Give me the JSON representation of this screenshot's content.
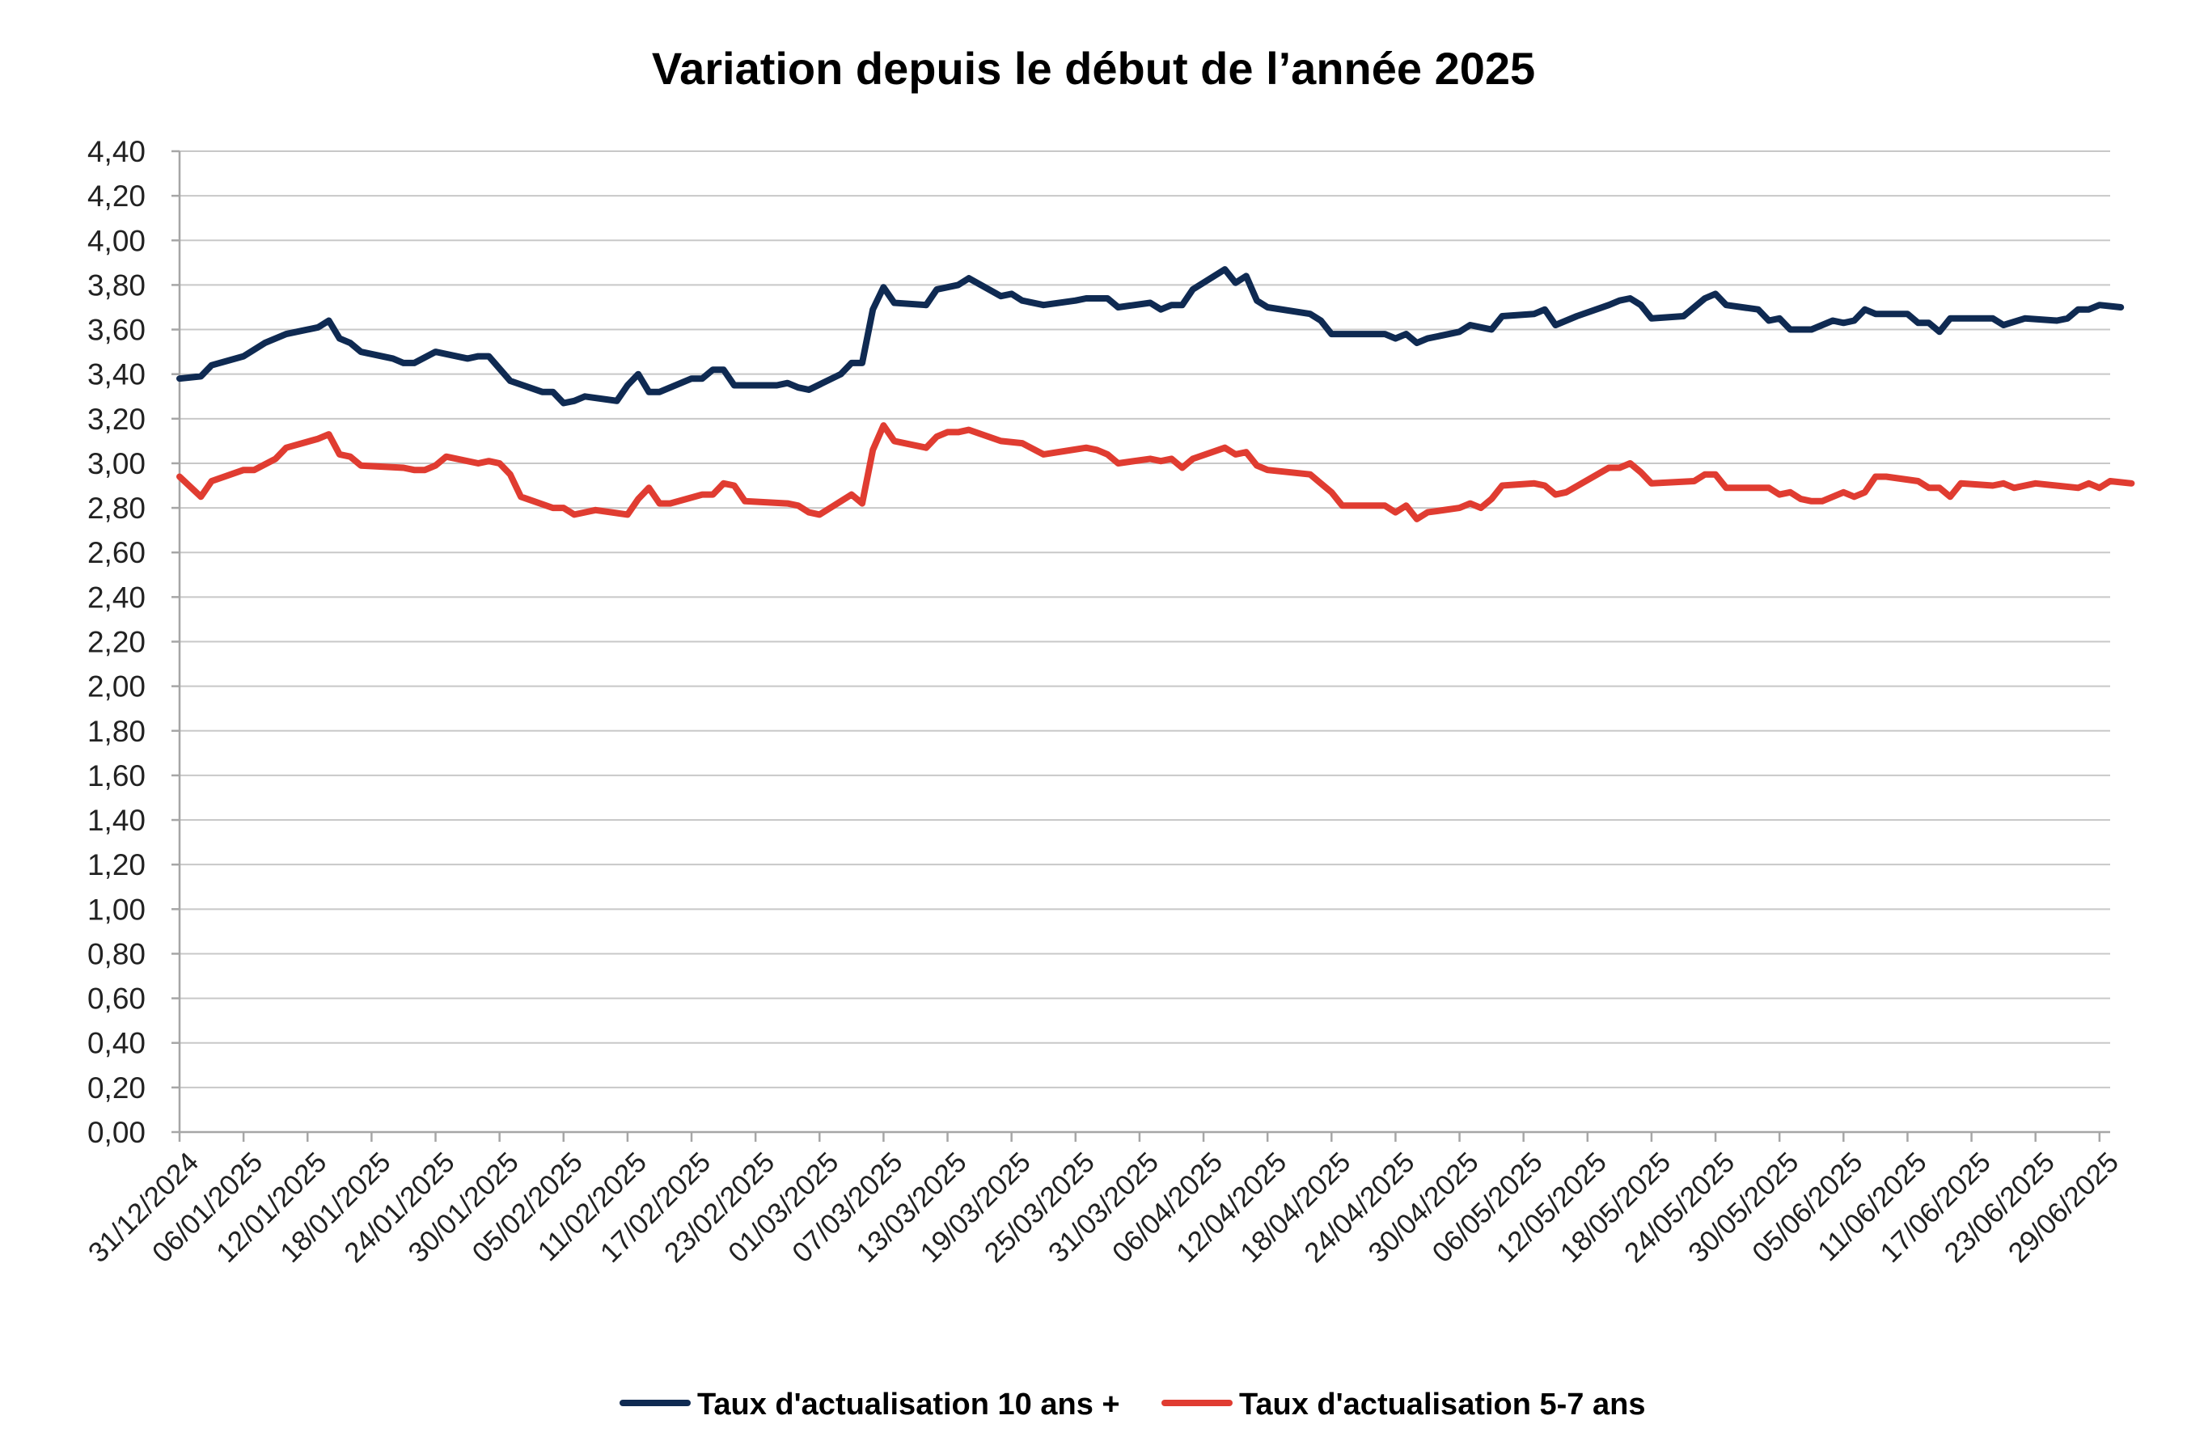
{
  "chart_data": {
    "type": "line",
    "title": "Variation depuis le début de l’année 2025",
    "xlabel": "",
    "ylabel": "",
    "ylim": [
      0,
      4.4
    ],
    "y_tick_step": 0.2,
    "y_tick_labels": [
      "0,00",
      "0,20",
      "0,40",
      "0,60",
      "0,80",
      "1,00",
      "1,20",
      "1,40",
      "1,60",
      "1,80",
      "2,00",
      "2,20",
      "2,40",
      "2,60",
      "2,80",
      "3,00",
      "3,20",
      "3,40",
      "3,60",
      "3,80",
      "4,00",
      "4,20",
      "4,40"
    ],
    "x_range": [
      "2024-12-31",
      "2025-06-30"
    ],
    "x_tick_labels": [
      "31/12/2024",
      "06/01/2025",
      "12/01/2025",
      "18/01/2025",
      "24/01/2025",
      "30/01/2025",
      "05/02/2025",
      "11/02/2025",
      "17/02/2025",
      "23/02/2025",
      "01/03/2025",
      "07/03/2025",
      "13/03/2025",
      "19/03/2025",
      "25/03/2025",
      "31/03/2025",
      "06/04/2025",
      "12/04/2025",
      "18/04/2025",
      "24/04/2025",
      "30/04/2025",
      "06/05/2025",
      "12/05/2025",
      "18/05/2025",
      "24/05/2025",
      "30/05/2025",
      "05/06/2025",
      "11/06/2025",
      "17/06/2025",
      "23/06/2025",
      "29/06/2025"
    ],
    "grid": true,
    "legend_position": "bottom",
    "series": [
      {
        "name": "Taux d'actualisation 10 ans +",
        "color": "#0f2a52",
        "points": [
          [
            "2024-12-31",
            3.38
          ],
          [
            "2025-01-02",
            3.39
          ],
          [
            "2025-01-03",
            3.44
          ],
          [
            "2025-01-06",
            3.48
          ],
          [
            "2025-01-07",
            3.51
          ],
          [
            "2025-01-08",
            3.54
          ],
          [
            "2025-01-10",
            3.58
          ],
          [
            "2025-01-13",
            3.61
          ],
          [
            "2025-01-14",
            3.64
          ],
          [
            "2025-01-15",
            3.56
          ],
          [
            "2025-01-16",
            3.54
          ],
          [
            "2025-01-17",
            3.5
          ],
          [
            "2025-01-20",
            3.47
          ],
          [
            "2025-01-21",
            3.45
          ],
          [
            "2025-01-22",
            3.45
          ],
          [
            "2025-01-24",
            3.5
          ],
          [
            "2025-01-27",
            3.47
          ],
          [
            "2025-01-28",
            3.48
          ],
          [
            "2025-01-29",
            3.48
          ],
          [
            "2025-01-31",
            3.37
          ],
          [
            "2025-02-03",
            3.32
          ],
          [
            "2025-02-04",
            3.32
          ],
          [
            "2025-02-05",
            3.27
          ],
          [
            "2025-02-06",
            3.28
          ],
          [
            "2025-02-07",
            3.3
          ],
          [
            "2025-02-10",
            3.28
          ],
          [
            "2025-02-11",
            3.35
          ],
          [
            "2025-02-12",
            3.4
          ],
          [
            "2025-02-13",
            3.32
          ],
          [
            "2025-02-14",
            3.32
          ],
          [
            "2025-02-17",
            3.38
          ],
          [
            "2025-02-18",
            3.38
          ],
          [
            "2025-02-19",
            3.42
          ],
          [
            "2025-02-20",
            3.42
          ],
          [
            "2025-02-21",
            3.35
          ],
          [
            "2025-02-24",
            3.35
          ],
          [
            "2025-02-25",
            3.35
          ],
          [
            "2025-02-26",
            3.36
          ],
          [
            "2025-02-27",
            3.34
          ],
          [
            "2025-02-28",
            3.33
          ],
          [
            "2025-03-03",
            3.4
          ],
          [
            "2025-03-04",
            3.45
          ],
          [
            "2025-03-05",
            3.45
          ],
          [
            "2025-03-06",
            3.69
          ],
          [
            "2025-03-07",
            3.79
          ],
          [
            "2025-03-08",
            3.72
          ],
          [
            "2025-03-11",
            3.71
          ],
          [
            "2025-03-12",
            3.78
          ],
          [
            "2025-03-14",
            3.8
          ],
          [
            "2025-03-15",
            3.83
          ],
          [
            "2025-03-18",
            3.75
          ],
          [
            "2025-03-19",
            3.76
          ],
          [
            "2025-03-20",
            3.73
          ],
          [
            "2025-03-22",
            3.71
          ],
          [
            "2025-03-25",
            3.73
          ],
          [
            "2025-03-26",
            3.74
          ],
          [
            "2025-03-28",
            3.74
          ],
          [
            "2025-03-29",
            3.7
          ],
          [
            "2025-04-01",
            3.72
          ],
          [
            "2025-04-02",
            3.69
          ],
          [
            "2025-04-03",
            3.71
          ],
          [
            "2025-04-04",
            3.71
          ],
          [
            "2025-04-05",
            3.78
          ],
          [
            "2025-04-08",
            3.87
          ],
          [
            "2025-04-09",
            3.81
          ],
          [
            "2025-04-10",
            3.84
          ],
          [
            "2025-04-11",
            3.73
          ],
          [
            "2025-04-12",
            3.7
          ],
          [
            "2025-04-16",
            3.67
          ],
          [
            "2025-04-17",
            3.64
          ],
          [
            "2025-04-18",
            3.58
          ],
          [
            "2025-04-23",
            3.58
          ],
          [
            "2025-04-24",
            3.56
          ],
          [
            "2025-04-25",
            3.58
          ],
          [
            "2025-04-26",
            3.54
          ],
          [
            "2025-04-27",
            3.56
          ],
          [
            "2025-04-30",
            3.59
          ],
          [
            "2025-05-01",
            3.62
          ],
          [
            "2025-05-02",
            3.61
          ],
          [
            "2025-05-03",
            3.6
          ],
          [
            "2025-05-04",
            3.66
          ],
          [
            "2025-05-07",
            3.67
          ],
          [
            "2025-05-08",
            3.69
          ],
          [
            "2025-05-09",
            3.62
          ],
          [
            "2025-05-11",
            3.66
          ],
          [
            "2025-05-14",
            3.71
          ],
          [
            "2025-05-15",
            3.73
          ],
          [
            "2025-05-16",
            3.74
          ],
          [
            "2025-05-17",
            3.71
          ],
          [
            "2025-05-18",
            3.65
          ],
          [
            "2025-05-21",
            3.66
          ],
          [
            "2025-05-23",
            3.74
          ],
          [
            "2025-05-24",
            3.76
          ],
          [
            "2025-05-25",
            3.71
          ],
          [
            "2025-05-28",
            3.69
          ],
          [
            "2025-05-29",
            3.64
          ],
          [
            "2025-05-30",
            3.65
          ],
          [
            "2025-05-31",
            3.6
          ],
          [
            "2025-06-02",
            3.6
          ],
          [
            "2025-06-04",
            3.64
          ],
          [
            "2025-06-05",
            3.63
          ],
          [
            "2025-06-06",
            3.64
          ],
          [
            "2025-06-07",
            3.69
          ],
          [
            "2025-06-08",
            3.67
          ],
          [
            "2025-06-11",
            3.67
          ],
          [
            "2025-06-12",
            3.63
          ],
          [
            "2025-06-13",
            3.63
          ],
          [
            "2025-06-14",
            3.59
          ],
          [
            "2025-06-15",
            3.65
          ],
          [
            "2025-06-19",
            3.65
          ],
          [
            "2025-06-20",
            3.62
          ],
          [
            "2025-06-22",
            3.65
          ],
          [
            "2025-06-25",
            3.64
          ],
          [
            "2025-06-26",
            3.65
          ],
          [
            "2025-06-27",
            3.69
          ],
          [
            "2025-06-28",
            3.69
          ],
          [
            "2025-06-29",
            3.71
          ],
          [
            "2025-07-01",
            3.7
          ]
        ]
      },
      {
        "name": "Taux d'actualisation 5-7 ans",
        "color": "#e03c31",
        "points": [
          [
            "2024-12-31",
            2.94
          ],
          [
            "2025-01-02",
            2.85
          ],
          [
            "2025-01-03",
            2.92
          ],
          [
            "2025-01-06",
            2.97
          ],
          [
            "2025-01-07",
            2.97
          ],
          [
            "2025-01-09",
            3.02
          ],
          [
            "2025-01-10",
            3.07
          ],
          [
            "2025-01-13",
            3.11
          ],
          [
            "2025-01-14",
            3.13
          ],
          [
            "2025-01-15",
            3.04
          ],
          [
            "2025-01-16",
            3.03
          ],
          [
            "2025-01-17",
            2.99
          ],
          [
            "2025-01-21",
            2.98
          ],
          [
            "2025-01-22",
            2.97
          ],
          [
            "2025-01-23",
            2.97
          ],
          [
            "2025-01-24",
            2.99
          ],
          [
            "2025-01-25",
            3.03
          ],
          [
            "2025-01-28",
            3.0
          ],
          [
            "2025-01-29",
            3.01
          ],
          [
            "2025-01-30",
            3.0
          ],
          [
            "2025-01-31",
            2.95
          ],
          [
            "2025-02-01",
            2.85
          ],
          [
            "2025-02-04",
            2.8
          ],
          [
            "2025-02-05",
            2.8
          ],
          [
            "2025-02-06",
            2.77
          ],
          [
            "2025-02-07",
            2.78
          ],
          [
            "2025-02-08",
            2.79
          ],
          [
            "2025-02-11",
            2.77
          ],
          [
            "2025-02-12",
            2.84
          ],
          [
            "2025-02-13",
            2.89
          ],
          [
            "2025-02-14",
            2.82
          ],
          [
            "2025-02-15",
            2.82
          ],
          [
            "2025-02-18",
            2.86
          ],
          [
            "2025-02-19",
            2.86
          ],
          [
            "2025-02-20",
            2.91
          ],
          [
            "2025-02-21",
            2.9
          ],
          [
            "2025-02-22",
            2.83
          ],
          [
            "2025-02-26",
            2.82
          ],
          [
            "2025-02-27",
            2.81
          ],
          [
            "2025-02-28",
            2.78
          ],
          [
            "2025-03-01",
            2.77
          ],
          [
            "2025-03-04",
            2.86
          ],
          [
            "2025-03-05",
            2.82
          ],
          [
            "2025-03-06",
            3.06
          ],
          [
            "2025-03-07",
            3.17
          ],
          [
            "2025-03-08",
            3.1
          ],
          [
            "2025-03-11",
            3.07
          ],
          [
            "2025-03-12",
            3.12
          ],
          [
            "2025-03-13",
            3.14
          ],
          [
            "2025-03-14",
            3.14
          ],
          [
            "2025-03-15",
            3.15
          ],
          [
            "2025-03-18",
            3.1
          ],
          [
            "2025-03-20",
            3.09
          ],
          [
            "2025-03-22",
            3.04
          ],
          [
            "2025-03-26",
            3.07
          ],
          [
            "2025-03-27",
            3.06
          ],
          [
            "2025-03-28",
            3.04
          ],
          [
            "2025-03-29",
            3.0
          ],
          [
            "2025-04-01",
            3.02
          ],
          [
            "2025-04-02",
            3.01
          ],
          [
            "2025-04-03",
            3.02
          ],
          [
            "2025-04-04",
            2.98
          ],
          [
            "2025-04-05",
            3.02
          ],
          [
            "2025-04-08",
            3.07
          ],
          [
            "2025-04-09",
            3.04
          ],
          [
            "2025-04-10",
            3.05
          ],
          [
            "2025-04-11",
            2.99
          ],
          [
            "2025-04-12",
            2.97
          ],
          [
            "2025-04-16",
            2.95
          ],
          [
            "2025-04-17",
            2.91
          ],
          [
            "2025-04-18",
            2.87
          ],
          [
            "2025-04-19",
            2.81
          ],
          [
            "2025-04-23",
            2.81
          ],
          [
            "2025-04-24",
            2.78
          ],
          [
            "2025-04-25",
            2.81
          ],
          [
            "2025-04-26",
            2.75
          ],
          [
            "2025-04-27",
            2.78
          ],
          [
            "2025-04-30",
            2.8
          ],
          [
            "2025-05-01",
            2.82
          ],
          [
            "2025-05-02",
            2.8
          ],
          [
            "2025-05-03",
            2.84
          ],
          [
            "2025-05-04",
            2.9
          ],
          [
            "2025-05-07",
            2.91
          ],
          [
            "2025-05-08",
            2.9
          ],
          [
            "2025-05-09",
            2.86
          ],
          [
            "2025-05-10",
            2.87
          ],
          [
            "2025-05-14",
            2.98
          ],
          [
            "2025-05-15",
            2.98
          ],
          [
            "2025-05-16",
            3.0
          ],
          [
            "2025-05-17",
            2.96
          ],
          [
            "2025-05-18",
            2.91
          ],
          [
            "2025-05-22",
            2.92
          ],
          [
            "2025-05-23",
            2.95
          ],
          [
            "2025-05-24",
            2.95
          ],
          [
            "2025-05-25",
            2.89
          ],
          [
            "2025-05-29",
            2.89
          ],
          [
            "2025-05-30",
            2.86
          ],
          [
            "2025-05-31",
            2.87
          ],
          [
            "2025-06-01",
            2.84
          ],
          [
            "2025-06-02",
            2.83
          ],
          [
            "2025-06-03",
            2.83
          ],
          [
            "2025-06-05",
            2.87
          ],
          [
            "2025-06-06",
            2.85
          ],
          [
            "2025-06-07",
            2.87
          ],
          [
            "2025-06-08",
            2.94
          ],
          [
            "2025-06-09",
            2.94
          ],
          [
            "2025-06-12",
            2.92
          ],
          [
            "2025-06-13",
            2.89
          ],
          [
            "2025-06-14",
            2.89
          ],
          [
            "2025-06-15",
            2.85
          ],
          [
            "2025-06-16",
            2.91
          ],
          [
            "2025-06-19",
            2.9
          ],
          [
            "2025-06-20",
            2.91
          ],
          [
            "2025-06-21",
            2.89
          ],
          [
            "2025-06-23",
            2.91
          ],
          [
            "2025-06-27",
            2.89
          ],
          [
            "2025-06-28",
            2.91
          ],
          [
            "2025-06-29",
            2.89
          ],
          [
            "2025-06-30",
            2.92
          ],
          [
            "2025-07-02",
            2.91
          ]
        ]
      }
    ]
  }
}
